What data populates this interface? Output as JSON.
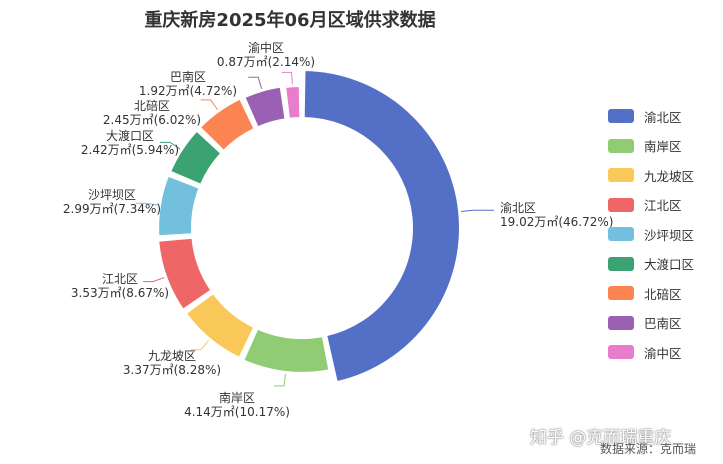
{
  "chart_data": {
    "type": "pie",
    "style": "donut",
    "title": "重庆新房2025年06月区域供求数据",
    "legend_position": "right",
    "slices": [
      {
        "name": "渝北区",
        "value": 19.02,
        "value_label": "19.02万㎡",
        "percent_label": "(46.72%)",
        "color": "#5470c6"
      },
      {
        "name": "南岸区",
        "value": 4.14,
        "value_label": "4.14万㎡",
        "percent_label": "(10.17%)",
        "color": "#91cc75"
      },
      {
        "name": "九龙坡区",
        "value": 3.37,
        "value_label": "3.37万㎡",
        "percent_label": "(8.28%)",
        "color": "#fac858"
      },
      {
        "name": "江北区",
        "value": 3.53,
        "value_label": "3.53万㎡",
        "percent_label": "(8.67%)",
        "color": "#ee6666"
      },
      {
        "name": "沙坪坝区",
        "value": 2.99,
        "value_label": "2.99万㎡",
        "percent_label": "(7.34%)",
        "color": "#73c0de"
      },
      {
        "name": "大渡口区",
        "value": 2.42,
        "value_label": "2.42万㎡",
        "percent_label": "(5.94%)",
        "color": "#3ba272"
      },
      {
        "name": "北碚区",
        "value": 2.45,
        "value_label": "2.45万㎡",
        "percent_label": "(6.02%)",
        "color": "#fc8452"
      },
      {
        "name": "巴南区",
        "value": 1.92,
        "value_label": "1.92万㎡",
        "percent_label": "(4.72%)",
        "color": "#9a60b4"
      },
      {
        "name": "渝中区",
        "value": 0.87,
        "value_label": "0.87万㎡",
        "percent_label": "(2.14%)",
        "color": "#ea7ccc"
      }
    ]
  },
  "watermark": "知乎 @克而瑞重庆",
  "source_note": "数据来源：克而瑞"
}
